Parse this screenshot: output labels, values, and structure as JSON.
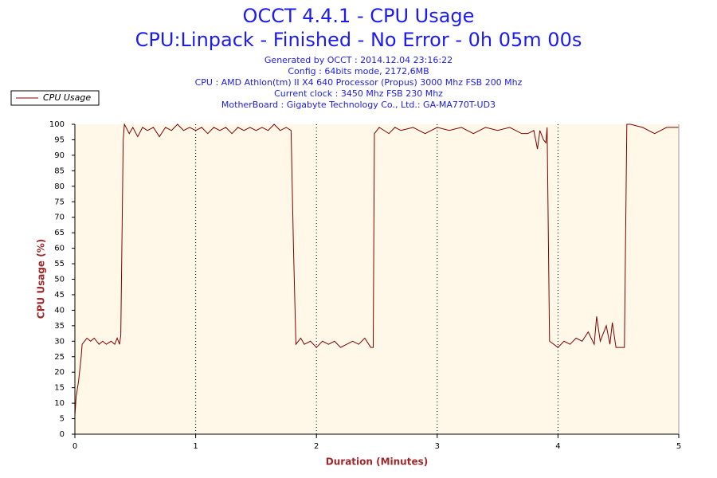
{
  "chart_data": {
    "type": "line",
    "title": "OCCT 4.4.1 - CPU Usage",
    "subtitle": "CPU:Linpack - Finished - No Error - 0h 05m 00s",
    "info_lines": [
      "Generated by OCCT : 2014.12.04 23:16:22",
      "Config : 64bits mode, 2172,6MB",
      "CPU : AMD Athlon(tm) II X4 640 Processor (Propus) 3000 Mhz FSB 200 Mhz",
      "Current clock : 3450 Mhz FSB 230 Mhz",
      "MotherBoard : Gigabyte Technology Co., Ltd.: GA-MA770T-UD3"
    ],
    "x_label": "Duration (Minutes)",
    "y_label": "CPU Usage (%)",
    "xlim": [
      0,
      5
    ],
    "xticks": [
      0,
      1,
      2,
      3,
      4,
      5
    ],
    "ylim": [
      0,
      100
    ],
    "yticks": [
      0,
      5,
      10,
      15,
      20,
      25,
      30,
      35,
      40,
      45,
      50,
      55,
      60,
      65,
      70,
      75,
      80,
      85,
      90,
      95,
      100
    ],
    "grid": true,
    "legend": "top-left",
    "x": [
      0,
      0.01,
      0.03,
      0.05,
      0.06,
      0.08,
      0.1,
      0.13,
      0.16,
      0.2,
      0.23,
      0.26,
      0.3,
      0.33,
      0.35,
      0.37,
      0.38,
      0.4,
      0.41,
      0.45,
      0.48,
      0.52,
      0.56,
      0.6,
      0.65,
      0.7,
      0.75,
      0.8,
      0.85,
      0.9,
      0.95,
      1.0,
      1.05,
      1.1,
      1.15,
      1.2,
      1.25,
      1.3,
      1.35,
      1.4,
      1.45,
      1.5,
      1.55,
      1.6,
      1.65,
      1.7,
      1.75,
      1.79,
      1.81,
      1.83,
      1.87,
      1.9,
      1.95,
      2.0,
      2.05,
      2.1,
      2.15,
      2.2,
      2.25,
      2.3,
      2.35,
      2.4,
      2.45,
      2.47,
      2.48,
      2.52,
      2.6,
      2.65,
      2.7,
      2.8,
      2.9,
      3.0,
      3.1,
      3.2,
      3.3,
      3.4,
      3.5,
      3.6,
      3.7,
      3.75,
      3.8,
      3.83,
      3.85,
      3.88,
      3.9,
      3.91,
      3.93,
      4.0,
      4.05,
      4.1,
      4.15,
      4.2,
      4.25,
      4.3,
      4.32,
      4.35,
      4.4,
      4.43,
      4.45,
      4.48,
      4.55,
      4.57,
      4.6,
      4.7,
      4.8,
      4.9,
      5.0
    ],
    "series": [
      {
        "name": "CPU Usage",
        "color": "#800000",
        "values": [
          6,
          12,
          17,
          24,
          29,
          30,
          31,
          30,
          31,
          29,
          30,
          29,
          30,
          29,
          31,
          29,
          32,
          95,
          100,
          97,
          99,
          96,
          99,
          98,
          99,
          96,
          99,
          98,
          100,
          98,
          99,
          98,
          99,
          97,
          99,
          98,
          99,
          97,
          99,
          98,
          99,
          98,
          99,
          98,
          100,
          98,
          99,
          98,
          60,
          29,
          31,
          29,
          30,
          28,
          30,
          29,
          30,
          28,
          29,
          30,
          29,
          31,
          28,
          28,
          97,
          99,
          97,
          99,
          98,
          99,
          97,
          99,
          98,
          99,
          97,
          99,
          98,
          99,
          97,
          97,
          98,
          92,
          98,
          95,
          94,
          99,
          30,
          28,
          30,
          29,
          31,
          30,
          33,
          29,
          38,
          30,
          35,
          29,
          36,
          28,
          28,
          100,
          100,
          99,
          97,
          99,
          99
        ]
      }
    ]
  }
}
